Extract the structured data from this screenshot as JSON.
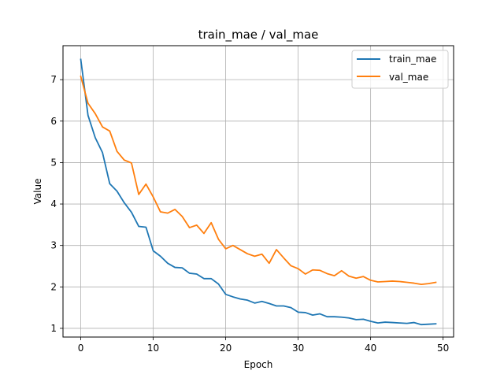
{
  "chart_data": {
    "type": "line",
    "title": "train_mae / val_mae",
    "xlabel": "Epoch",
    "ylabel": "Value",
    "xlim": [
      -2.45,
      51.45
    ],
    "ylim": [
      0.79,
      7.82
    ],
    "xticks": [
      0,
      10,
      20,
      30,
      40,
      50
    ],
    "yticks": [
      1,
      2,
      3,
      4,
      5,
      6,
      7
    ],
    "grid": true,
    "legend_position": "top-right",
    "x": [
      0,
      1,
      2,
      3,
      4,
      5,
      6,
      7,
      8,
      9,
      10,
      11,
      12,
      13,
      14,
      15,
      16,
      17,
      18,
      19,
      20,
      21,
      22,
      23,
      24,
      25,
      26,
      27,
      28,
      29,
      30,
      31,
      32,
      33,
      34,
      35,
      36,
      37,
      38,
      39,
      40,
      41,
      42,
      43,
      44,
      45,
      46,
      47,
      48,
      49
    ],
    "series": [
      {
        "name": "train_mae",
        "color": "#1f77b4",
        "values": [
          7.49,
          6.14,
          5.6,
          5.24,
          4.49,
          4.31,
          4.03,
          3.8,
          3.46,
          3.44,
          2.87,
          2.74,
          2.57,
          2.47,
          2.46,
          2.33,
          2.31,
          2.2,
          2.2,
          2.07,
          1.82,
          1.76,
          1.71,
          1.68,
          1.61,
          1.65,
          1.6,
          1.54,
          1.54,
          1.5,
          1.39,
          1.38,
          1.32,
          1.35,
          1.28,
          1.28,
          1.27,
          1.25,
          1.21,
          1.22,
          1.17,
          1.13,
          1.15,
          1.14,
          1.13,
          1.12,
          1.14,
          1.09,
          1.1,
          1.11
        ]
      },
      {
        "name": "val_mae",
        "color": "#ff7f0e",
        "values": [
          7.08,
          6.43,
          6.18,
          5.86,
          5.76,
          5.27,
          5.06,
          4.99,
          4.23,
          4.48,
          4.17,
          3.81,
          3.78,
          3.87,
          3.7,
          3.43,
          3.49,
          3.29,
          3.55,
          3.15,
          2.92,
          3.0,
          2.9,
          2.8,
          2.74,
          2.79,
          2.57,
          2.9,
          2.7,
          2.51,
          2.44,
          2.31,
          2.41,
          2.4,
          2.32,
          2.27,
          2.39,
          2.26,
          2.21,
          2.25,
          2.16,
          2.12,
          2.13,
          2.14,
          2.13,
          2.11,
          2.09,
          2.06,
          2.08,
          2.11
        ]
      }
    ]
  }
}
